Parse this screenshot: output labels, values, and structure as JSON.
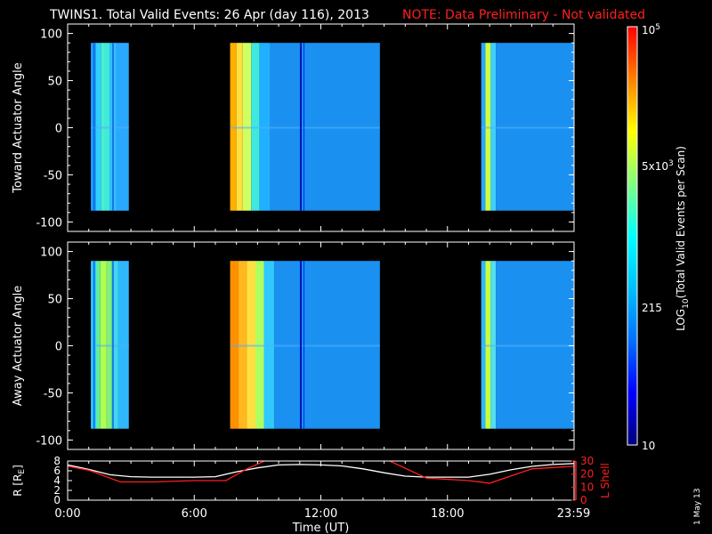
{
  "title": {
    "main": "TWINS1. Total Valid Events: 26 Apr (day 116), 2013",
    "note": "NOTE: Data Preliminary - Not validated",
    "note_color": "#ff2020"
  },
  "date_stamp": "1 May 13",
  "colorbar": {
    "label": "LOG10(Total Valid Events per Scan)",
    "scale": "log",
    "range": [
      10,
      100000
    ],
    "ticks": [
      {
        "value": 100000,
        "label": "10^5"
      },
      {
        "value": 5000,
        "label": "5x10^3"
      },
      {
        "value": 215,
        "label": "215"
      },
      {
        "value": 10,
        "label": "10"
      }
    ],
    "colormap": [
      "#00007a",
      "#0000ff",
      "#0070ff",
      "#00c0ff",
      "#00ffff",
      "#80ff80",
      "#ffff00",
      "#ff8000",
      "#ff0000"
    ]
  },
  "chart_data": [
    {
      "type": "heatmap",
      "panel": "top",
      "ylabel": "Toward Actuator Angle",
      "ylim": [
        -110,
        110
      ],
      "yticks": [
        -100,
        -50,
        0,
        50,
        100
      ],
      "xlim": [
        0,
        24
      ],
      "data_y_range": [
        -88,
        90
      ],
      "segments": [
        {
          "x": [
            1.1,
            2.9
          ],
          "stripes": [
            [
              1.1,
              1.35,
              "#1ea0ff"
            ],
            [
              1.35,
              1.6,
              "#30d0ff"
            ],
            [
              1.6,
              1.75,
              "#50f0c0"
            ],
            [
              1.75,
              2.0,
              "#40e8e0"
            ],
            [
              2.0,
              2.3,
              "#30c0ff"
            ],
            [
              2.3,
              2.9,
              "#2aa8ff"
            ]
          ]
        },
        {
          "x": [
            7.7,
            14.8
          ],
          "stripes": [
            [
              7.7,
              8.0,
              "#ffb000"
            ],
            [
              8.0,
              8.3,
              "#ffe040"
            ],
            [
              8.3,
              8.7,
              "#d0ff60"
            ],
            [
              8.7,
              9.1,
              "#40e8e0"
            ],
            [
              9.1,
              9.6,
              "#20b0ff"
            ],
            [
              9.6,
              14.8,
              "#1a90f0"
            ]
          ]
        },
        {
          "x": [
            19.6,
            24.0
          ],
          "stripes": [
            [
              19.6,
              19.8,
              "#2aa8ff"
            ],
            [
              19.8,
              20.05,
              "#d0ff40"
            ],
            [
              20.05,
              20.3,
              "#40d0ff"
            ],
            [
              20.3,
              24.0,
              "#1a90f0"
            ]
          ]
        }
      ]
    },
    {
      "type": "heatmap",
      "panel": "middle",
      "ylabel": "Away Actuator Angle",
      "ylim": [
        -110,
        110
      ],
      "yticks": [
        -100,
        -50,
        0,
        50,
        100
      ],
      "xlim": [
        0,
        24
      ],
      "data_y_range": [
        -88,
        90
      ],
      "segments": [
        {
          "x": [
            1.1,
            2.9
          ],
          "stripes": [
            [
              1.1,
              1.35,
              "#30c8ff"
            ],
            [
              1.35,
              1.55,
              "#60f0a0"
            ],
            [
              1.55,
              1.85,
              "#b0ff50"
            ],
            [
              1.85,
              2.1,
              "#80f080"
            ],
            [
              2.1,
              2.4,
              "#40d8f0"
            ],
            [
              2.4,
              2.9,
              "#30b8ff"
            ]
          ]
        },
        {
          "x": [
            7.7,
            14.8
          ],
          "stripes": [
            [
              7.7,
              8.1,
              "#ff9000"
            ],
            [
              8.1,
              8.5,
              "#ffb820"
            ],
            [
              8.5,
              8.9,
              "#ffe040"
            ],
            [
              8.9,
              9.3,
              "#b0ff60"
            ],
            [
              9.3,
              9.8,
              "#30c8ff"
            ],
            [
              9.8,
              14.8,
              "#1a90f0"
            ]
          ]
        },
        {
          "x": [
            19.6,
            24.0
          ],
          "stripes": [
            [
              19.6,
              19.8,
              "#30b8ff"
            ],
            [
              19.8,
              20.05,
              "#c8ff40"
            ],
            [
              20.05,
              20.3,
              "#50e0f0"
            ],
            [
              20.3,
              24.0,
              "#1a90f0"
            ]
          ]
        }
      ]
    },
    {
      "type": "line",
      "panel": "bottom",
      "xlabel": "Time (UT)",
      "xlim": [
        0,
        24
      ],
      "xticks": [
        0,
        6,
        12,
        18,
        23.98
      ],
      "xtick_labels": [
        "0:00",
        "6:00",
        "12:00",
        "18:00",
        "23:59"
      ],
      "ylabel_left": "R [RE]",
      "ylim_left": [
        0,
        8
      ],
      "yticks_left": [
        0,
        2,
        4,
        6,
        8
      ],
      "ylabel_right": "L Shell",
      "ylim_right": [
        0,
        30
      ],
      "yticks_right": [
        0,
        10,
        20,
        30
      ],
      "series": [
        {
          "name": "R [RE]",
          "color": "#ffffff",
          "axis": "left",
          "x": [
            0,
            1,
            2,
            3,
            4,
            5,
            6,
            7,
            8,
            9,
            10,
            11,
            12,
            13,
            14,
            15,
            16,
            17,
            18,
            19,
            20,
            21,
            22,
            23,
            24
          ],
          "y": [
            7.2,
            6.3,
            5.2,
            4.8,
            4.7,
            4.7,
            4.7,
            4.8,
            5.8,
            6.6,
            7.2,
            7.3,
            7.2,
            7.0,
            6.4,
            5.6,
            4.9,
            4.7,
            4.7,
            4.7,
            5.3,
            6.2,
            6.9,
            7.3,
            7.5
          ]
        },
        {
          "name": "L Shell",
          "color": "#ff2020",
          "axis": "right",
          "x": [
            0,
            1,
            2.5,
            4,
            6,
            7.5,
            8.5,
            9.6,
            15,
            17,
            19,
            20,
            22,
            24
          ],
          "y": [
            26,
            23,
            14,
            14,
            15,
            15,
            24,
            32,
            32,
            17,
            15,
            13,
            24,
            26
          ]
        }
      ]
    }
  ]
}
